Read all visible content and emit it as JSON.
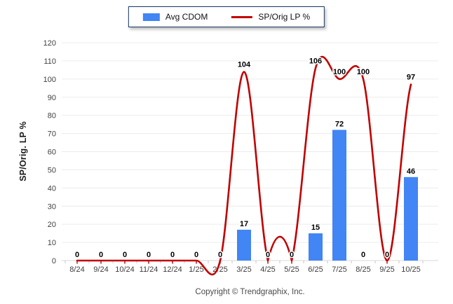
{
  "legend": {
    "bar_label": "Avg CDOM",
    "line_label": "SP/Orig LP %"
  },
  "y_axis_title": "SP/Orig. LP %",
  "footer": {
    "copyright": "Copyright © Trendgraphix, Inc."
  },
  "chart_data": {
    "type": "combo",
    "categories": [
      "8/24",
      "9/24",
      "10/24",
      "11/24",
      "12/24",
      "1/25",
      "2/25",
      "3/25",
      "4/25",
      "5/25",
      "6/25",
      "7/25",
      "8/25",
      "9/25",
      "10/25"
    ],
    "series": [
      {
        "name": "Avg CDOM",
        "type": "bar",
        "color": "#4285F4",
        "values": [
          0,
          0,
          0,
          0,
          0,
          0,
          0,
          17,
          0,
          0,
          15,
          72,
          0,
          0,
          46
        ]
      },
      {
        "name": "SP/Orig LP %",
        "type": "line",
        "color": "#C00000",
        "values": [
          0,
          0,
          0,
          0,
          0,
          0,
          0,
          104,
          0,
          0,
          106,
          100,
          100,
          0,
          97
        ]
      }
    ],
    "ylabel": "SP/Orig. LP %",
    "ylim": [
      0,
      120
    ],
    "yticks": [
      0,
      10,
      20,
      30,
      40,
      50,
      60,
      70,
      80,
      90,
      100,
      110,
      120
    ],
    "grid": true,
    "grid_color": "#ececec",
    "axis_color": "#d9d9d9",
    "tick_label_color": "#3d3d3d",
    "data_label_color": "#000000",
    "legend_position": "top",
    "data_labels_shown": true
  }
}
